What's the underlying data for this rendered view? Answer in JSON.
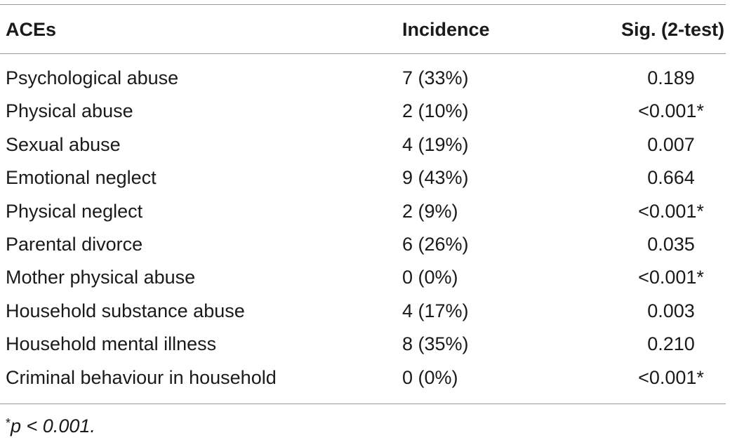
{
  "table": {
    "headers": [
      "ACEs",
      "Incidence",
      "Sig. (2-test)"
    ],
    "rows": [
      {
        "ace": "Psychological abuse",
        "incidence": "7 (33%)",
        "sig": "0.189"
      },
      {
        "ace": "Physical abuse",
        "incidence": "2 (10%)",
        "sig": "<0.001*"
      },
      {
        "ace": "Sexual abuse",
        "incidence": "4 (19%)",
        "sig": "0.007"
      },
      {
        "ace": "Emotional neglect",
        "incidence": "9 (43%)",
        "sig": "0.664"
      },
      {
        "ace": "Physical neglect",
        "incidence": "2 (9%)",
        "sig": "<0.001*"
      },
      {
        "ace": "Parental divorce",
        "incidence": "6 (26%)",
        "sig": "0.035"
      },
      {
        "ace": "Mother physical abuse",
        "incidence": "0 (0%)",
        "sig": "<0.001*"
      },
      {
        "ace": "Household substance abuse",
        "incidence": "4 (17%)",
        "sig": "0.003"
      },
      {
        "ace": "Household mental illness",
        "incidence": "8 (35%)",
        "sig": "0.210"
      },
      {
        "ace": "Criminal behaviour in household",
        "incidence": "0 (0%)",
        "sig": "<0.001*"
      }
    ],
    "footnote_mark": "*",
    "footnote_text": "p < 0.001."
  },
  "colors": {
    "text": "#1a1a1a",
    "rule": "#9a9a9a",
    "background": "#ffffff"
  }
}
